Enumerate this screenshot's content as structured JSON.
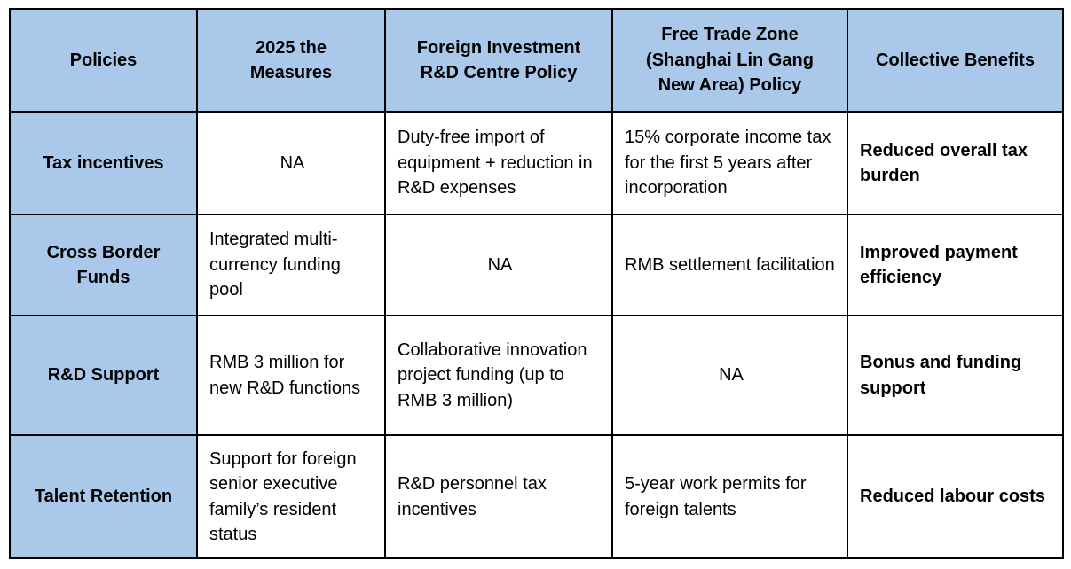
{
  "colors": {
    "header_fill": "#a9c8ea",
    "border": "#000000",
    "text": "#000000",
    "cell_fill": "#ffffff"
  },
  "table": {
    "headers": [
      "Policies",
      "2025 the Measures",
      "Foreign Investment R&D Centre Policy",
      "Free Trade Zone (Shanghai Lin Gang New Area) Policy",
      "Collective Benefits"
    ],
    "rows": [
      {
        "policy": "Tax incentives",
        "measures_2025": "NA",
        "foreign_rd": "Duty-free import of equipment + reduction in R&D expenses",
        "ftz": "15% corporate income tax for the first 5 years after incorporation",
        "benefit": "Reduced overall tax burden"
      },
      {
        "policy": "Cross Border Funds",
        "measures_2025": "Integrated multi-currency funding pool",
        "foreign_rd": "NA",
        "ftz": "RMB settlement facilitation",
        "benefit": "Improved payment efficiency"
      },
      {
        "policy": "R&D Support",
        "measures_2025": "RMB 3 million for new R&D functions",
        "foreign_rd": "Collaborative innovation project funding (up to RMB 3 million)",
        "ftz": "NA",
        "benefit": "Bonus and funding support"
      },
      {
        "policy": "Talent Retention",
        "measures_2025": "Support for foreign senior executive family’s resident status",
        "foreign_rd": "R&D personnel tax incentives",
        "ftz": "5-year work permits for foreign talents",
        "benefit": "Reduced labour costs"
      }
    ]
  }
}
